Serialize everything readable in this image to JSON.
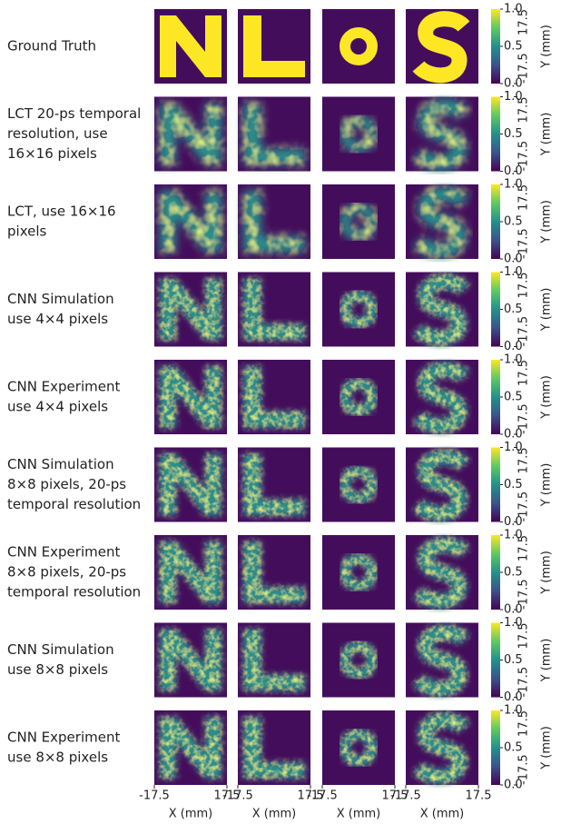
{
  "rows": [
    {
      "label": [
        "Ground Truth"
      ]
    },
    {
      "label": [
        "LCT 20-ps temporal",
        "resolution, use",
        "16×16 pixels"
      ]
    },
    {
      "label": [
        "LCT, use 16×16",
        "pixels"
      ]
    },
    {
      "label": [
        "CNN Simulation",
        "use 4×4 pixels"
      ]
    },
    {
      "label": [
        "CNN Experiment",
        "use 4×4 pixels"
      ]
    },
    {
      "label": [
        "CNN Simulation",
        "8×8 pixels, 20-ps",
        "temporal resolution"
      ]
    },
    {
      "label": [
        "CNN Experiment",
        "8×8 pixels, 20-ps",
        "temporal resolution"
      ]
    },
    {
      "label": [
        "CNN Simulation",
        "use 8×8 pixels"
      ]
    },
    {
      "label": [
        "CNN Experiment",
        "use 8×8 pixels"
      ]
    }
  ],
  "colorbar": {
    "lim": [
      0,
      1
    ],
    "ticks": [
      {
        "value": 0,
        "label": "0.0"
      },
      0.5,
      {
        "value": 1,
        "label": "1.0"
      }
    ]
  },
  "y_axis": {
    "label": "Y (mm)",
    "lim": [
      -17.5,
      17.5
    ],
    "ticks": [
      -17.5,
      17.5
    ]
  },
  "x_axis": {
    "label": "X (mm)",
    "lim": [
      -17.5,
      17.5
    ],
    "ticks": [
      -17.5,
      17.5
    ]
  }
}
